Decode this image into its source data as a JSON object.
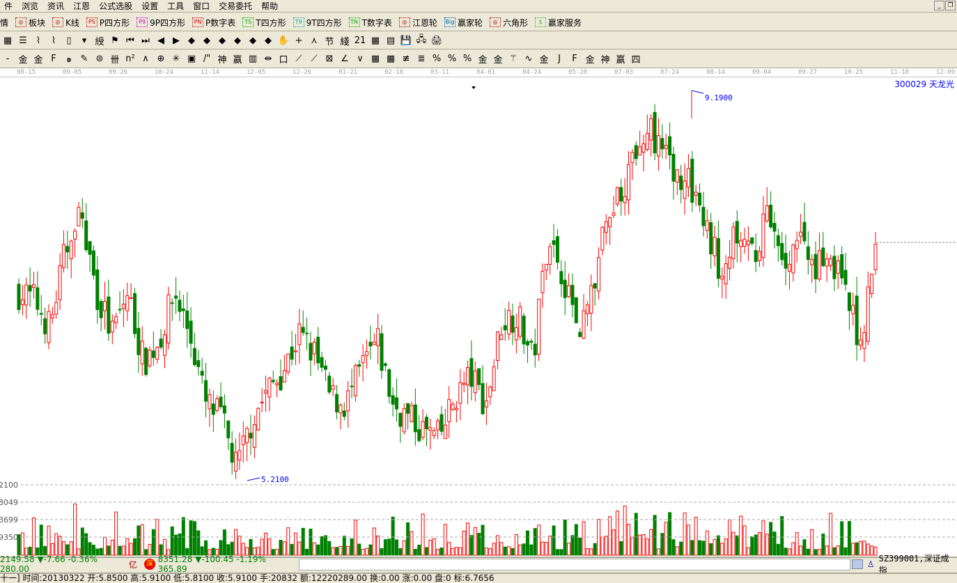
{
  "menu": [
    "件",
    "浏览",
    "资讯",
    "江恩",
    "公式选股",
    "设置",
    "工具",
    "窗口",
    "交易委托",
    "帮助"
  ],
  "toolbar1": [
    {
      "label": "情",
      "icon": ""
    },
    {
      "label": "板块",
      "icon": "grid-icon"
    },
    {
      "label": "K线",
      "icon": "candles-icon"
    },
    {
      "label": "P四方形",
      "icon": "PS"
    },
    {
      "label": "9P四方形",
      "icon": "P9"
    },
    {
      "label": "P数字表",
      "icon": "PN"
    },
    {
      "label": "T四方形",
      "icon": "TS"
    },
    {
      "label": "9T四方形",
      "icon": "T9"
    },
    {
      "label": "T数字表",
      "icon": "TN"
    },
    {
      "label": "江恩轮",
      "icon": "gann-wheel-icon"
    },
    {
      "label": "赢家轮",
      "icon": "Big"
    },
    {
      "label": "六角形",
      "icon": "hexagon-icon"
    },
    {
      "label": "赢家服务",
      "icon": "$"
    }
  ],
  "toolbar2_icons": [
    "▦",
    "☰",
    "⌇",
    "⌇",
    "▯",
    "▾",
    "綬",
    "⚑",
    "⏮",
    "⏭",
    "◀",
    "▶",
    "◆",
    "◆",
    "◆",
    "◆",
    "◆",
    "◆",
    "✋",
    "+",
    "⋏",
    "节",
    "綫",
    "21",
    "▦",
    "▤",
    "💾",
    "🖧",
    "🖨"
  ],
  "toolbar3_icons": [
    "-",
    "金",
    "金",
    "F",
    "๑",
    "✎",
    "⊜",
    "卌",
    "n²",
    "∧",
    "⊕",
    "✳",
    "▣",
    "/\"",
    "神",
    "赢",
    "▥",
    "⇹",
    "口",
    "⟋",
    "⟋",
    "⊠",
    "∠",
    "∨",
    "▦",
    "▦",
    "≢",
    "≣",
    "%",
    "%",
    "%",
    "金",
    "金",
    "⚚",
    "∿",
    "金",
    "J",
    "F",
    "金",
    "神",
    "赢",
    "四"
  ],
  "axis_dates": [
    "08-15",
    "09-05",
    "09-26",
    "10-24",
    "11-14",
    "12-05",
    "12-26",
    "01-21",
    "02-18",
    "03-11",
    "04-01",
    "04-24",
    "05-20",
    "07-03",
    "07-24",
    "08-14",
    "09-04",
    "09-27",
    "10-25",
    "11-18",
    "12-09"
  ],
  "stock_title": "300029 天龙光",
  "high_label": "9.1900",
  "low_label": "5.2100",
  "volume_labels": [
    "2100",
    "8049",
    "3699",
    "9350"
  ],
  "colors": {
    "up": "#ff0000",
    "down": "#008000",
    "annotation": "#0000ff"
  },
  "chart_data": {
    "type": "candlestick",
    "price_range": [
      5.21,
      9.19
    ],
    "close_trace": [
      7.13,
      7.06,
      6.77,
      7.56,
      7.91,
      7.13,
      6.7,
      7.13,
      6.42,
      6.63,
      7.13,
      6.7,
      5.99,
      5.85,
      5.32,
      5.85,
      6.13,
      6.35,
      6.7,
      6.49,
      6.06,
      5.99,
      6.35,
      6.63,
      5.99,
      5.85,
      5.71,
      5.64,
      6.06,
      6.28,
      5.99,
      6.84,
      6.92,
      6.42,
      7.77,
      7.27,
      6.77,
      7.27,
      8.05,
      8.27,
      8.83,
      8.69,
      8.41,
      8.27,
      7.84,
      7.41,
      7.7,
      7.48,
      7.91,
      7.41,
      7.7,
      7.41,
      7.56,
      7.13,
      6.63,
      7.56
    ]
  },
  "status": {
    "sh_index": "2149.58 ▼-7.66 -0.36% 280.00",
    "sh_unit": "亿",
    "sz_badge": "深",
    "sz_index": "8351.28 ▼-100.45 -1.19% 365.89",
    "ticker": "SZ399001,深证成指"
  },
  "info_line": "十一] 时间:20130322 开:5.8500 高:5.9100 低:5.8100 收:5.9100 手:20832 额:12220289.00 换:0.00 涨:0.00 盘:0 标:6.7656"
}
